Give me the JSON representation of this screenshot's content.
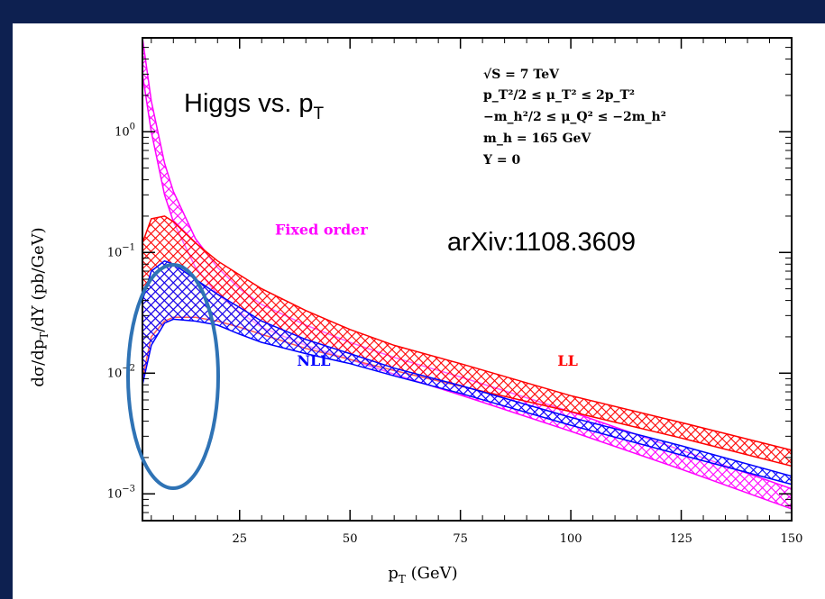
{
  "slide": {
    "background": "#0d2050"
  },
  "overlay": {
    "title_main": "Higgs vs. p",
    "title_sub": "T",
    "arxiv": "arXiv:1108.3609",
    "ellipse_color": "#2f73b5"
  },
  "chart_data": {
    "type": "area",
    "title": "",
    "xlabel_main": "p",
    "xlabel_sub": "T",
    "xlabel_unit": " (GeV)",
    "ylabel": "dσ/dp_T/dY (pb/GeV)",
    "ylabel_parts": {
      "pre": "dσ/dp",
      "sub": "T",
      "post": "/dY (pb/GeV)"
    },
    "xlim": [
      3,
      150
    ],
    "ylim": [
      0.0006,
      6
    ],
    "yscale": "log",
    "grid": false,
    "x_ticks": [
      25,
      50,
      75,
      100,
      125,
      150
    ],
    "x_tick_labels": [
      "25",
      "50",
      "75",
      "100",
      "125",
      "150"
    ],
    "y_ticks": [
      {
        "value": 1,
        "base": "10",
        "exp": "0"
      },
      {
        "value": 0.1,
        "base": "10",
        "exp": "−1"
      },
      {
        "value": 0.01,
        "base": "10",
        "exp": "−2"
      },
      {
        "value": 0.001,
        "base": "10",
        "exp": "−3"
      }
    ],
    "parameters": [
      "√S =   7 TeV",
      "p_T²/2 ≤ μ_T² ≤ 2p_T²",
      "−m_h²/2 ≤ μ_Q² ≤ −2m_h²",
      "m_h = 165 GeV",
      "Y = 0"
    ],
    "series": [
      {
        "name": "Fixed order",
        "color": "#ff00ff",
        "x": [
          3,
          5,
          8,
          10,
          15,
          20,
          25,
          30,
          40,
          50,
          60,
          75,
          100,
          125,
          150
        ],
        "lower": [
          3.0,
          1.0,
          0.3,
          0.18,
          0.075,
          0.045,
          0.032,
          0.024,
          0.017,
          0.013,
          0.0098,
          0.0066,
          0.0033,
          0.0016,
          0.00075
        ],
        "upper": [
          6.0,
          1.8,
          0.55,
          0.32,
          0.13,
          0.075,
          0.05,
          0.037,
          0.025,
          0.018,
          0.0135,
          0.0093,
          0.0048,
          0.0023,
          0.0011
        ]
      },
      {
        "name": "LL",
        "color": "#ff0000",
        "x": [
          3,
          5,
          8,
          10,
          15,
          20,
          25,
          30,
          40,
          50,
          60,
          75,
          100,
          125,
          150
        ],
        "lower": [
          0.009,
          0.02,
          0.027,
          0.029,
          0.029,
          0.027,
          0.024,
          0.021,
          0.016,
          0.013,
          0.0105,
          0.0078,
          0.0048,
          0.0029,
          0.0017
        ],
        "upper": [
          0.12,
          0.19,
          0.2,
          0.18,
          0.12,
          0.085,
          0.065,
          0.05,
          0.033,
          0.023,
          0.017,
          0.012,
          0.0065,
          0.0039,
          0.0023
        ]
      },
      {
        "name": "NLL",
        "color": "#0000ff",
        "x": [
          3,
          5,
          8,
          10,
          15,
          20,
          25,
          30,
          40,
          50,
          60,
          75,
          100,
          125,
          150
        ],
        "lower": [
          0.008,
          0.017,
          0.026,
          0.028,
          0.027,
          0.025,
          0.021,
          0.018,
          0.0145,
          0.012,
          0.0095,
          0.0068,
          0.0037,
          0.0021,
          0.0012
        ],
        "upper": [
          0.04,
          0.07,
          0.085,
          0.08,
          0.06,
          0.045,
          0.035,
          0.027,
          0.019,
          0.0145,
          0.011,
          0.0079,
          0.0043,
          0.0025,
          0.0014
        ]
      }
    ],
    "annotations": [
      {
        "text": "Fixed order",
        "series": "Fixed order",
        "x": 33,
        "y": 0.14
      },
      {
        "text": "NLL",
        "series": "NLL",
        "x": 38,
        "y": 0.0115
      },
      {
        "text": "LL",
        "series": "LL",
        "x": 97,
        "y": 0.0115
      }
    ]
  }
}
